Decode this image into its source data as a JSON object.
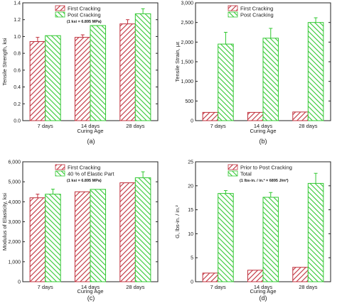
{
  "colors": {
    "red": "#c0303c",
    "green": "#32c832",
    "axis": "#222222"
  },
  "chart_data": [
    {
      "type": "bar",
      "panel_label": "(a)",
      "categories": [
        "7 days",
        "14 days",
        "28 days"
      ],
      "series": [
        {
          "name": "First Cracking",
          "pattern": "red-hatch",
          "values": [
            0.94,
            0.99,
            1.15
          ],
          "errors": [
            0.05,
            0.03,
            0.05
          ]
        },
        {
          "name": "Post Cracking",
          "pattern": "green-hatch",
          "values": [
            1.01,
            1.13,
            1.27
          ],
          "errors": [
            0.0,
            0.0,
            0.06
          ]
        }
      ],
      "xlabel": "Curing Age",
      "ylabel": "Tensile Strength, ksi",
      "ylim": [
        0.0,
        1.4
      ],
      "yticks": [
        "0.0",
        "0.2",
        "0.4",
        "0.6",
        "0.8",
        "1.0",
        "1.2",
        "1.4"
      ],
      "annotation": "(1 ksi = 6.895 MPa)",
      "legend": "top-left"
    },
    {
      "type": "bar",
      "panel_label": "(b)",
      "categories": [
        "7 days",
        "14 days",
        "28 days"
      ],
      "series": [
        {
          "name": "First Cracking",
          "pattern": "red-hatch",
          "values": [
            210,
            210,
            220
          ],
          "errors": [
            0,
            0,
            0
          ]
        },
        {
          "name": "Post Cracking",
          "pattern": "green-hatch",
          "values": [
            1950,
            2100,
            2500
          ],
          "errors": [
            300,
            250,
            120
          ]
        }
      ],
      "xlabel": "Curing Age",
      "ylabel": "Tensile Strain, με",
      "ylim": [
        0,
        3000
      ],
      "yticks": [
        "0",
        "500",
        "1,000",
        "1,500",
        "2,000",
        "2,500",
        "3,000"
      ],
      "annotation": "",
      "legend": "top-left"
    },
    {
      "type": "bar",
      "panel_label": "(c)",
      "categories": [
        "7 days",
        "14 days",
        "28 days"
      ],
      "series": [
        {
          "name": "First Cracking",
          "pattern": "red-hatch",
          "values": [
            4200,
            4500,
            4950
          ],
          "errors": [
            180,
            0,
            0
          ]
        },
        {
          "name": "40 % of Elastic Part",
          "pattern": "green-hatch",
          "values": [
            4380,
            4620,
            5200
          ],
          "errors": [
            250,
            0,
            300
          ]
        }
      ],
      "xlabel": "Curing Age",
      "ylabel": "Modulus of Elasticity, ksi",
      "ylim": [
        0,
        6000
      ],
      "yticks": [
        "0",
        "1,000",
        "2,000",
        "3,000",
        "4,000",
        "5,000",
        "6,000"
      ],
      "annotation": "(1 ksi = 6.895 MPa)",
      "legend": "top-left"
    },
    {
      "type": "bar",
      "panel_label": "(d)",
      "categories": [
        "7 days",
        "14 days",
        "28 days"
      ],
      "series": [
        {
          "name": "Prior to Post Cracking",
          "pattern": "red-hatch",
          "values": [
            1.8,
            2.4,
            3.0
          ],
          "errors": [
            0,
            0,
            0
          ]
        },
        {
          "name": "Total",
          "pattern": "green-hatch",
          "values": [
            18.4,
            17.6,
            20.5
          ],
          "errors": [
            0.6,
            1.0,
            2.1
          ]
        }
      ],
      "xlabel": "Curing Age",
      "ylabel": "G, lbs-in. / in.²",
      "ylim": [
        0,
        25
      ],
      "yticks": [
        "0",
        "5",
        "10",
        "15",
        "20",
        "25"
      ],
      "annotation": "(1 lbs-in. / in.² = 6895 J/m²)",
      "legend": "top-left"
    }
  ]
}
